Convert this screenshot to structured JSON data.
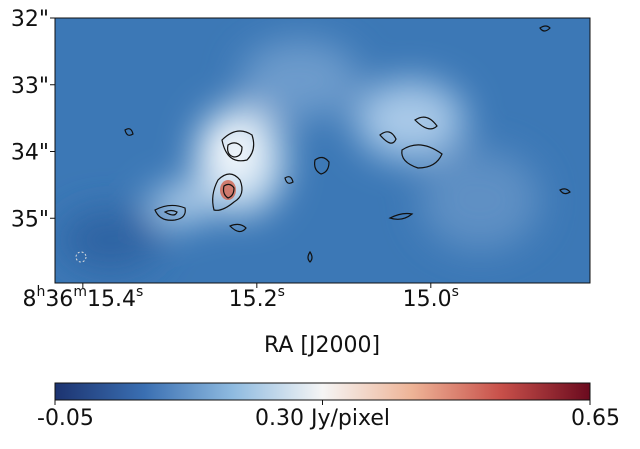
{
  "chart_data": {
    "type": "image",
    "xlabel": "RA [J2000]",
    "xlim": [
      15.432,
      14.817
    ],
    "xticks": [
      {
        "value": 15.4,
        "label": "8h36m15.4s"
      },
      {
        "value": 15.2,
        "label": "15.2s"
      },
      {
        "value": 15.0,
        "label": "15.0s"
      }
    ],
    "ylim": [
      35.97,
      32
    ],
    "yticks": [
      {
        "value": 32,
        "label": "32\""
      },
      {
        "value": 33,
        "label": "33\""
      },
      {
        "value": 34,
        "label": "34\""
      },
      {
        "value": 35,
        "label": "35\""
      }
    ],
    "colorbar": {
      "clim": [
        -0.05,
        0.65
      ],
      "ticks": [
        -0.05,
        {
          "value": 0.3,
          "label": "0.30 Jy/pixel"
        },
        0.65
      ],
      "colormap": [
        "#1c3370",
        "#3a6fb2",
        "#8fbbe0",
        "#f5f5f5",
        "#eeb497",
        "#c8504a",
        "#6a0a1e"
      ]
    }
  }
}
